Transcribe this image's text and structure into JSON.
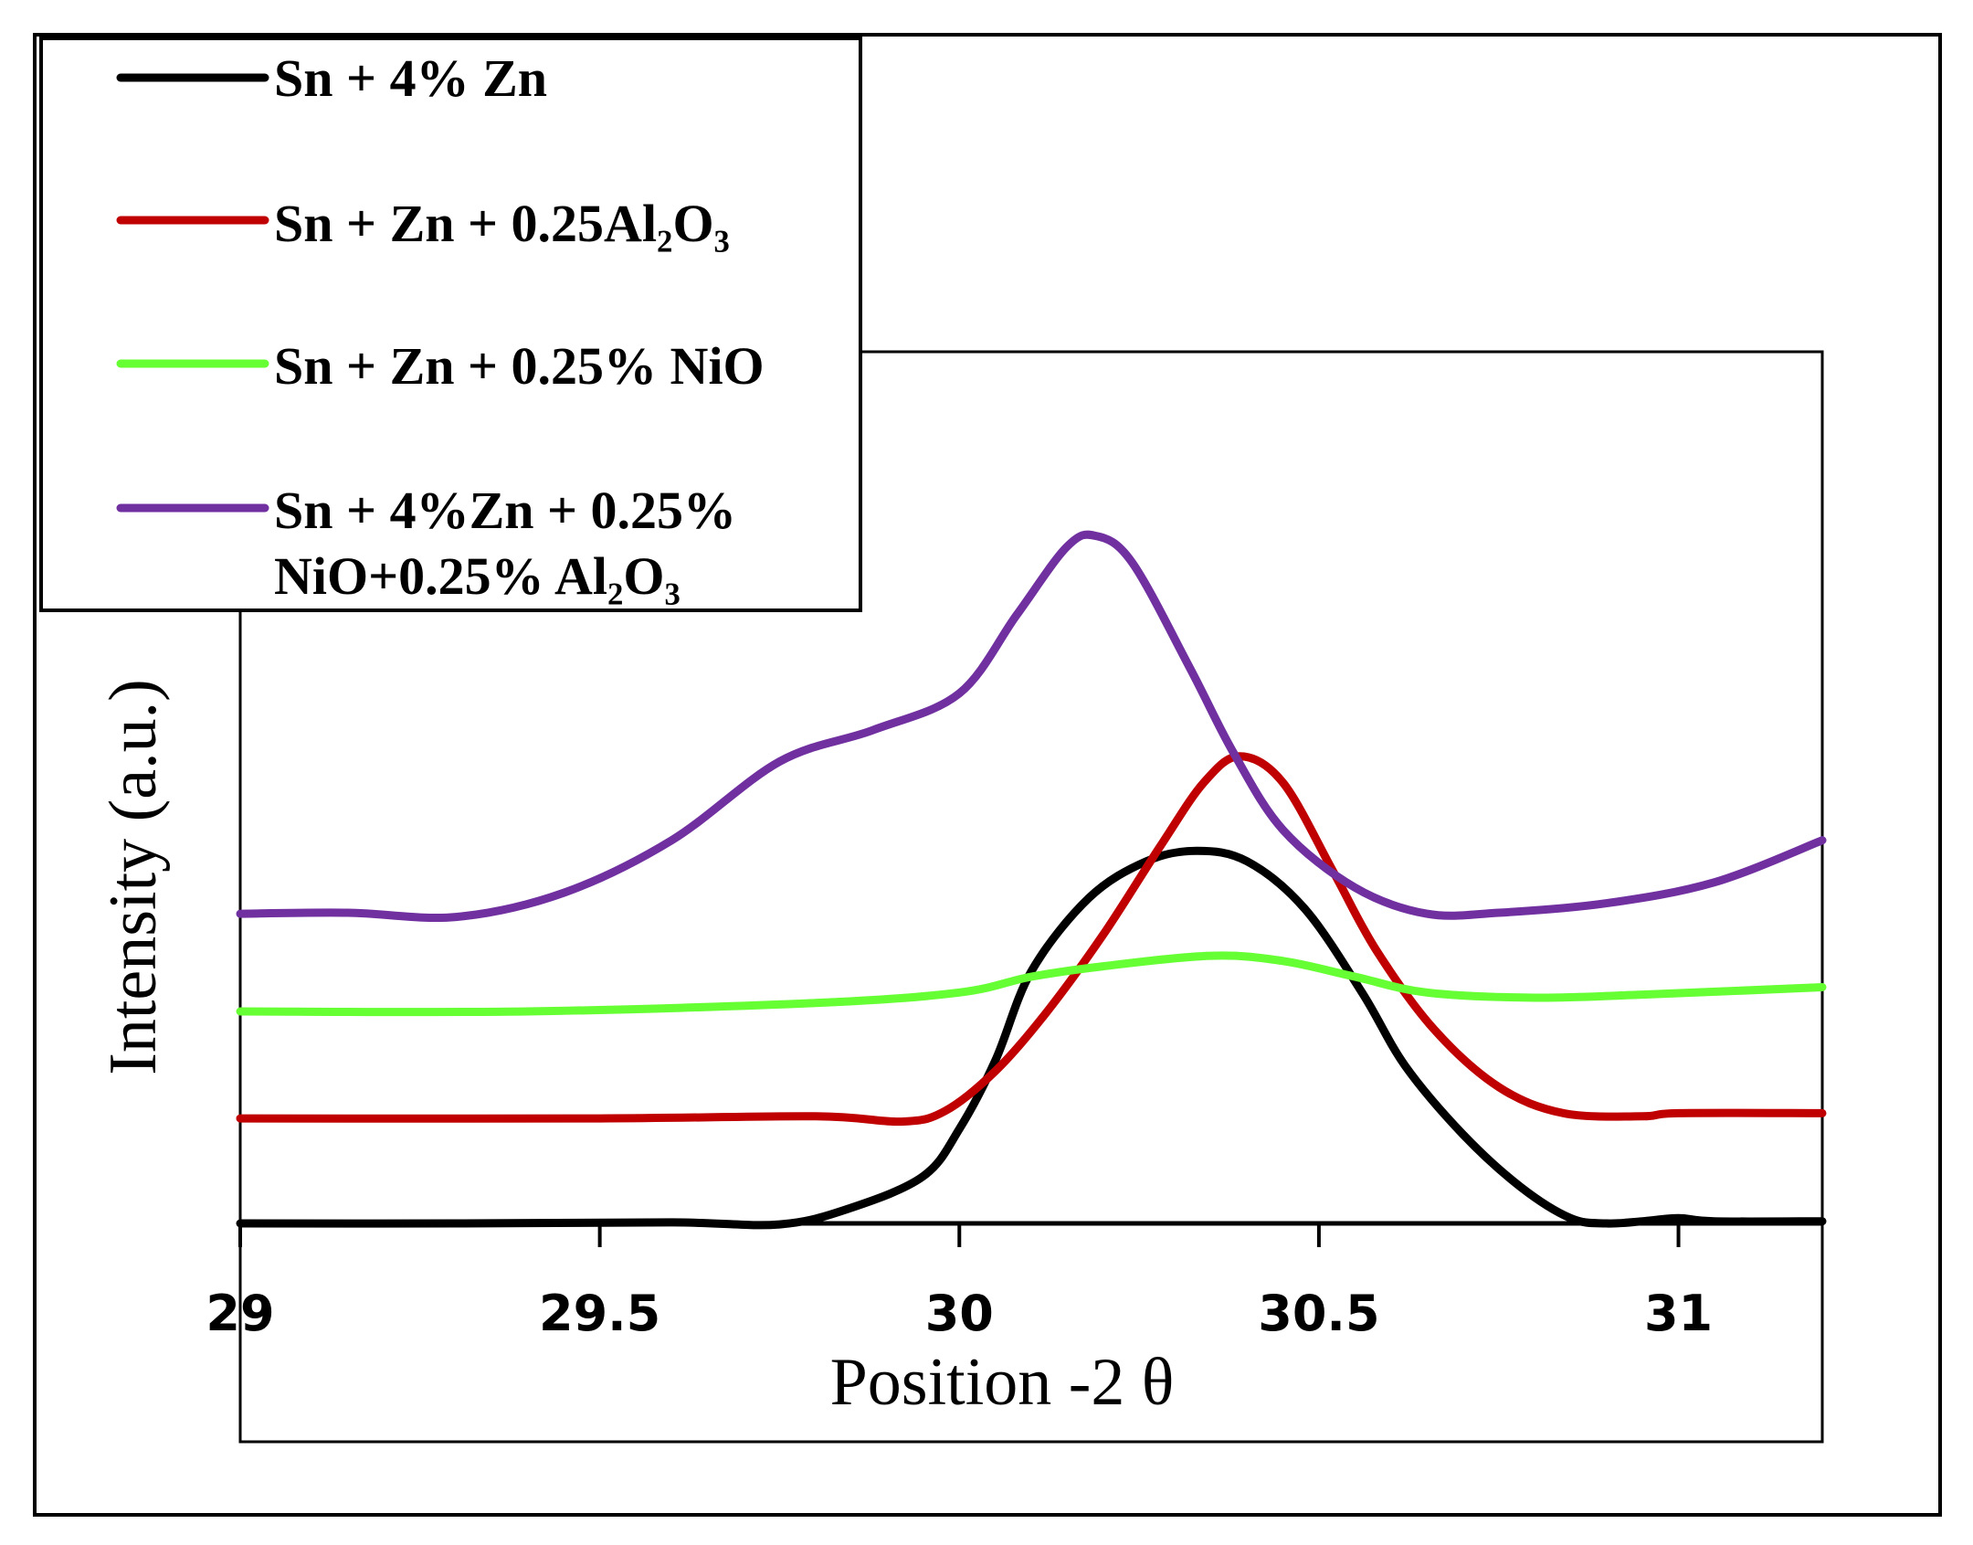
{
  "chart_data": {
    "type": "line",
    "title": "",
    "xlabel": "Position -2 θ",
    "ylabel": "Intensity (a.u.)",
    "xlim": [
      29,
      31.2
    ],
    "ylim": [
      0,
      8
    ],
    "x_ticks": [
      {
        "value": 29,
        "label": "29"
      },
      {
        "value": 29.5,
        "label": "29.5"
      },
      {
        "value": 30,
        "label": "30"
      },
      {
        "value": 30.5,
        "label": "30.5"
      },
      {
        "value": 31,
        "label": "31"
      }
    ],
    "grid": false,
    "legend_position": "top-left",
    "series": [
      {
        "name": "Sn + 4% Zn",
        "color": "#000000",
        "points": [
          [
            29.0,
            0.0
          ],
          [
            29.3,
            0.0
          ],
          [
            29.6,
            0.01
          ],
          [
            29.75,
            -0.01
          ],
          [
            29.85,
            0.15
          ],
          [
            29.95,
            0.45
          ],
          [
            30.0,
            0.9
          ],
          [
            30.05,
            1.55
          ],
          [
            30.1,
            2.4
          ],
          [
            30.18,
            3.1
          ],
          [
            30.26,
            3.45
          ],
          [
            30.33,
            3.55
          ],
          [
            30.4,
            3.45
          ],
          [
            30.48,
            3.0
          ],
          [
            30.56,
            2.2
          ],
          [
            30.62,
            1.5
          ],
          [
            30.7,
            0.85
          ],
          [
            30.78,
            0.35
          ],
          [
            30.85,
            0.05
          ],
          [
            30.9,
            0.0
          ],
          [
            30.95,
            0.02
          ],
          [
            31.0,
            0.05
          ],
          [
            31.05,
            0.02
          ],
          [
            31.2,
            0.02
          ]
        ]
      },
      {
        "name": "Sn + Zn + 0.25Al₂O₃",
        "color": "#c00000",
        "points": [
          [
            29.0,
            1.0
          ],
          [
            29.5,
            1.0
          ],
          [
            29.8,
            1.02
          ],
          [
            29.92,
            0.97
          ],
          [
            29.98,
            1.07
          ],
          [
            30.05,
            1.45
          ],
          [
            30.12,
            2.0
          ],
          [
            30.2,
            2.75
          ],
          [
            30.28,
            3.6
          ],
          [
            30.34,
            4.2
          ],
          [
            30.39,
            4.45
          ],
          [
            30.45,
            4.2
          ],
          [
            30.52,
            3.35
          ],
          [
            30.58,
            2.6
          ],
          [
            30.66,
            1.85
          ],
          [
            30.75,
            1.3
          ],
          [
            30.84,
            1.05
          ],
          [
            30.95,
            1.02
          ],
          [
            31.0,
            1.05
          ],
          [
            31.2,
            1.05
          ]
        ]
      },
      {
        "name": "Sn + Zn + 0.25% NiO",
        "color": "#66ff33",
        "points": [
          [
            29.0,
            2.02
          ],
          [
            29.4,
            2.02
          ],
          [
            29.8,
            2.1
          ],
          [
            30.0,
            2.2
          ],
          [
            30.1,
            2.35
          ],
          [
            30.2,
            2.45
          ],
          [
            30.35,
            2.55
          ],
          [
            30.45,
            2.5
          ],
          [
            30.55,
            2.35
          ],
          [
            30.65,
            2.2
          ],
          [
            30.8,
            2.15
          ],
          [
            30.95,
            2.18
          ],
          [
            31.2,
            2.25
          ]
        ]
      },
      {
        "name": "Sn + 4%Zn + 0.25% NiO+0.25% Al₂O₃",
        "color": "#7030a0",
        "points": [
          [
            29.0,
            2.95
          ],
          [
            29.15,
            2.96
          ],
          [
            29.3,
            2.92
          ],
          [
            29.45,
            3.15
          ],
          [
            29.6,
            3.65
          ],
          [
            29.75,
            4.4
          ],
          [
            29.88,
            4.7
          ],
          [
            30.0,
            5.05
          ],
          [
            30.08,
            5.8
          ],
          [
            30.15,
            6.45
          ],
          [
            30.19,
            6.55
          ],
          [
            30.24,
            6.3
          ],
          [
            30.32,
            5.3
          ],
          [
            30.38,
            4.5
          ],
          [
            30.45,
            3.75
          ],
          [
            30.55,
            3.2
          ],
          [
            30.65,
            2.95
          ],
          [
            30.75,
            2.96
          ],
          [
            30.9,
            3.05
          ],
          [
            31.05,
            3.25
          ],
          [
            31.2,
            3.65
          ]
        ]
      }
    ]
  }
}
